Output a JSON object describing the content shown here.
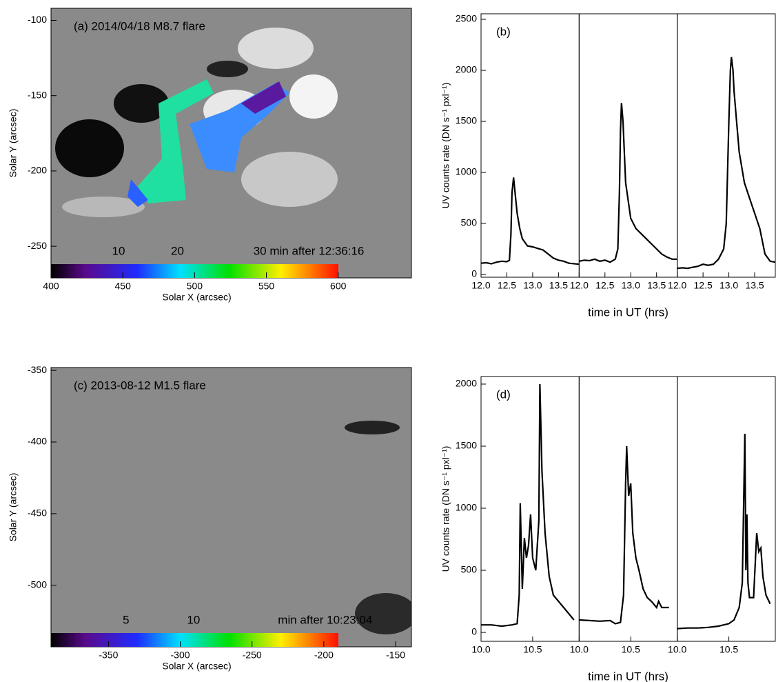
{
  "chart_data": [
    {
      "type": "image",
      "title": "(a) 2014/04/18 M8.7 flare",
      "xlabel": "Solar X (arcsec)",
      "ylabel": "Solar Y (arcsec)",
      "xlim": [
        400,
        651
      ],
      "ylim": [
        -271,
        -92
      ],
      "xticks": [
        400,
        450,
        500,
        550,
        600
      ],
      "yticks": [
        -100,
        -150,
        -200,
        -250
      ],
      "colorbar_labels": [
        "10",
        "20",
        "30 min after 12:36:16"
      ]
    },
    {
      "type": "line",
      "label": "(b)",
      "xlabel": "time in UT (hrs)",
      "ylabel": "UV counts rate (DN s⁻¹ pxl⁻¹)",
      "color": "#000000",
      "ylim": [
        -27,
        2554
      ],
      "yticks": [
        0,
        500,
        1000,
        1500,
        2000,
        2500
      ],
      "panels": [
        {
          "xlim": [
            12.0,
            13.9
          ],
          "xticks": [
            {
              "value": 12,
              "label": "12.0"
            },
            12.5,
            {
              "value": 13,
              "label": "13.0"
            },
            13.5
          ],
          "x": [
            12.0,
            12.1,
            12.2,
            12.3,
            12.4,
            12.5,
            12.55,
            12.58,
            12.6,
            12.63,
            12.66,
            12.7,
            12.75,
            12.8,
            12.9,
            13.0,
            13.1,
            13.2,
            13.3,
            13.4,
            13.5,
            13.6,
            13.7,
            13.9
          ],
          "values": [
            110,
            115,
            105,
            120,
            130,
            125,
            140,
            400,
            800,
            950,
            800,
            600,
            450,
            350,
            280,
            270,
            255,
            240,
            200,
            160,
            140,
            130,
            110,
            100
          ]
        },
        {
          "xlim": [
            12.0,
            13.9
          ],
          "xticks": [
            {
              "value": 12,
              "label": "12.0"
            },
            12.5,
            {
              "value": 13,
              "label": "13.0"
            },
            13.5
          ],
          "x": [
            12.0,
            12.1,
            12.2,
            12.3,
            12.4,
            12.5,
            12.6,
            12.7,
            12.75,
            12.78,
            12.8,
            12.82,
            12.85,
            12.9,
            13.0,
            13.1,
            13.2,
            13.3,
            13.4,
            13.5,
            13.6,
            13.7,
            13.8,
            13.9
          ],
          "values": [
            130,
            140,
            135,
            150,
            130,
            140,
            120,
            150,
            250,
            800,
            1400,
            1680,
            1500,
            900,
            550,
            450,
            400,
            350,
            300,
            250,
            200,
            170,
            150,
            150
          ]
        },
        {
          "xlim": [
            12.0,
            13.9
          ],
          "xticks": [
            {
              "value": 12,
              "label": "12.0"
            },
            12.5,
            {
              "value": 13,
              "label": "13.0"
            },
            13.5
          ],
          "x": [
            12.0,
            12.1,
            12.2,
            12.3,
            12.4,
            12.5,
            12.6,
            12.7,
            12.8,
            12.9,
            12.95,
            13.0,
            13.03,
            13.05,
            13.08,
            13.1,
            13.15,
            13.2,
            13.3,
            13.4,
            13.5,
            13.6,
            13.7,
            13.8,
            13.9
          ],
          "values": [
            60,
            65,
            60,
            70,
            80,
            100,
            90,
            100,
            150,
            250,
            500,
            1500,
            2000,
            2130,
            2000,
            1800,
            1500,
            1200,
            900,
            750,
            600,
            450,
            200,
            130,
            120
          ]
        }
      ]
    },
    {
      "type": "image",
      "title": "(c) 2013-08-12 M1.5 flare",
      "xlabel": "Solar X (arcsec)",
      "ylabel": "Solar Y (arcsec)",
      "xlim": [
        -390,
        -139
      ],
      "ylim": [
        -543,
        -348
      ],
      "xticks": [
        -350,
        -300,
        -250,
        -200,
        -150
      ],
      "yticks": [
        -350,
        -400,
        -450,
        -500
      ],
      "colorbar_labels": [
        "5",
        "10",
        "min after 10:23:04"
      ]
    },
    {
      "type": "line",
      "label": "(d)",
      "xlabel": "time in UT (hrs)",
      "ylabel": "UV counts rate (DN s⁻¹ pxl⁻¹)",
      "color": "#000000",
      "ylim": [
        -72,
        2061
      ],
      "yticks": [
        0,
        500,
        1000,
        1500,
        2000
      ],
      "panels": [
        {
          "xlim": [
            10.0,
            10.95
          ],
          "xticks": [
            {
              "value": 10,
              "label": "10.0"
            },
            10.5
          ],
          "x": [
            10.0,
            10.1,
            10.2,
            10.3,
            10.35,
            10.37,
            10.38,
            10.4,
            10.42,
            10.44,
            10.46,
            10.48,
            10.5,
            10.53,
            10.56,
            10.57,
            10.59,
            10.62,
            10.66,
            10.7,
            10.75,
            10.8,
            10.85,
            10.9
          ],
          "values": [
            60,
            60,
            50,
            60,
            70,
            300,
            1040,
            350,
            760,
            600,
            700,
            950,
            600,
            500,
            900,
            2000,
            1300,
            800,
            450,
            300,
            250,
            200,
            150,
            100
          ]
        },
        {
          "xlim": [
            10.0,
            10.95
          ],
          "xticks": [
            {
              "value": 10,
              "label": "10.0"
            },
            10.5
          ],
          "x": [
            10.0,
            10.1,
            10.2,
            10.3,
            10.35,
            10.4,
            10.43,
            10.45,
            10.46,
            10.48,
            10.5,
            10.52,
            10.55,
            10.58,
            10.62,
            10.66,
            10.7,
            10.75,
            10.77,
            10.8,
            10.87
          ],
          "values": [
            100,
            95,
            90,
            95,
            70,
            80,
            300,
            1200,
            1500,
            1100,
            1200,
            800,
            600,
            500,
            350,
            280,
            250,
            200,
            250,
            200,
            200
          ]
        },
        {
          "xlim": [
            10.0,
            10.95
          ],
          "xticks": [
            {
              "value": 10,
              "label": "10.0"
            },
            10.5
          ],
          "x": [
            10.0,
            10.1,
            10.2,
            10.3,
            10.4,
            10.5,
            10.55,
            10.6,
            10.63,
            10.655,
            10.665,
            10.675,
            10.685,
            10.7,
            10.74,
            10.77,
            10.79,
            10.81,
            10.83,
            10.86,
            10.9
          ],
          "values": [
            30,
            35,
            35,
            40,
            50,
            70,
            100,
            200,
            400,
            1600,
            500,
            950,
            400,
            280,
            280,
            800,
            650,
            680,
            450,
            300,
            230
          ]
        }
      ]
    }
  ]
}
